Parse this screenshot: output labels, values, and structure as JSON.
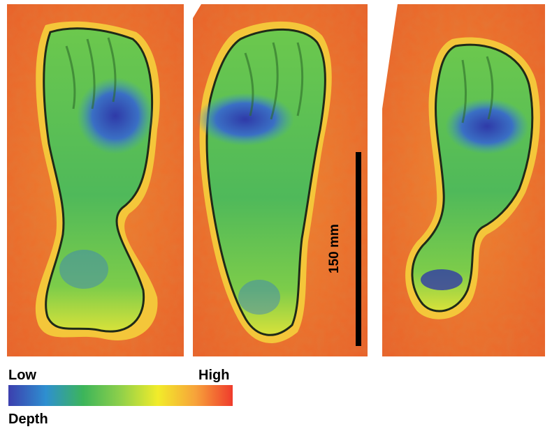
{
  "scale_bar": {
    "label": "150 mm"
  },
  "legend": {
    "low_label": "Low",
    "high_label": "High",
    "caption": "Depth",
    "colors": [
      "#3c3fae",
      "#2e8fd0",
      "#3cb55a",
      "#8fd04a",
      "#f2ec2a",
      "#f7a33a",
      "#ef3b2c"
    ]
  },
  "colors": {
    "background_surface": "#ef7a2c",
    "rim": "#f5c83a",
    "footprint_mid": "#5dbd4a",
    "deep": "#3343b0",
    "edge_shadow": "#1f2a18"
  },
  "panels": [
    {
      "description_name": "footprint-1"
    },
    {
      "description_name": "footprint-2"
    },
    {
      "description_name": "footprint-3"
    }
  ]
}
